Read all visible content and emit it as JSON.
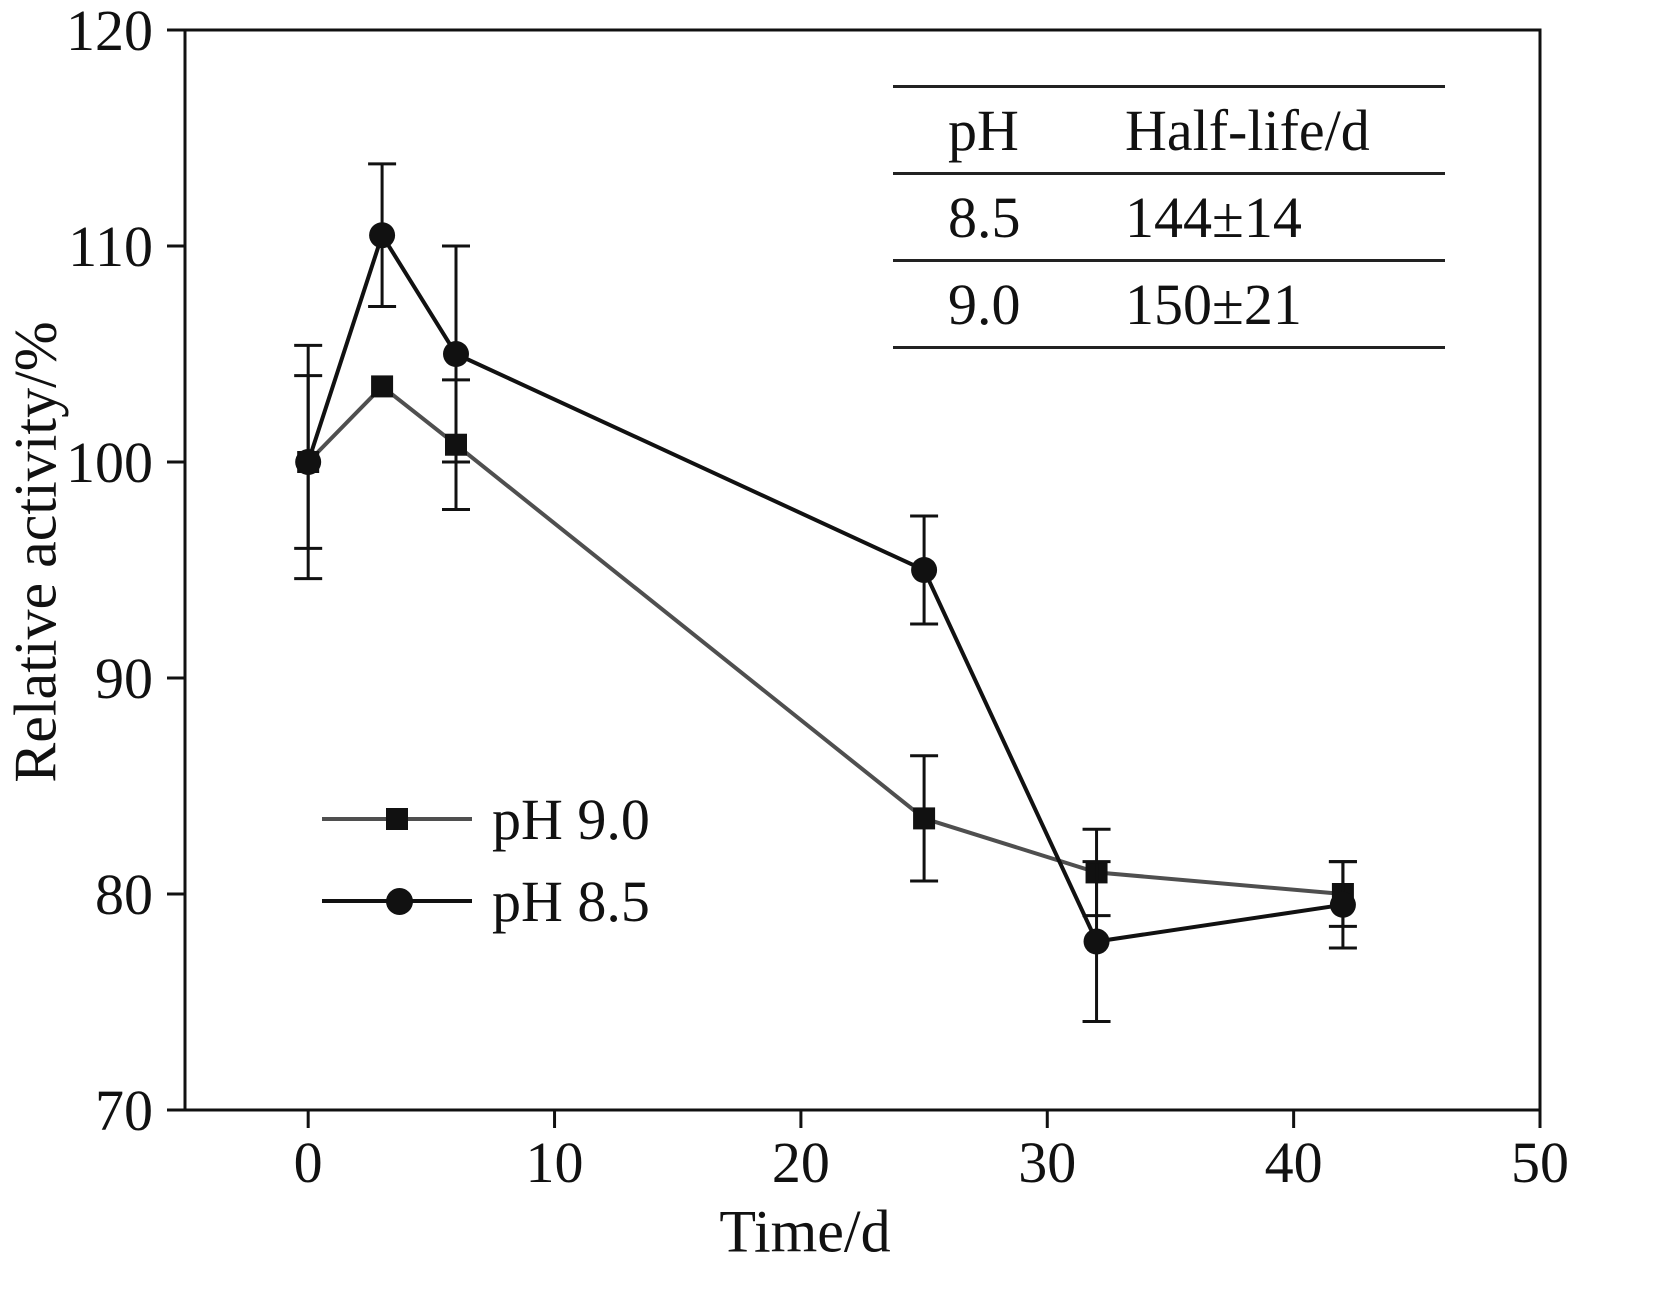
{
  "figure": {
    "xlabel": "Time/d",
    "ylabel": "Relative activity/%"
  },
  "legend": {
    "items": [
      {
        "label": "pH 9.0",
        "marker": "square"
      },
      {
        "label": "pH 8.5",
        "marker": "circle"
      }
    ]
  },
  "inset_table": {
    "headers": [
      "pH",
      "Half-life/d"
    ],
    "rows": [
      [
        "8.5",
        "144±14"
      ],
      [
        "9.0",
        "150±21"
      ]
    ]
  },
  "colors": {
    "axis": "#111111",
    "series_ph_9_0_line": "#4f4f4f",
    "series_ph_8_5_line": "#111111",
    "marker": "#111111"
  },
  "chart_data": {
    "type": "line",
    "x": [
      0,
      3,
      6,
      25,
      32,
      42
    ],
    "series": [
      {
        "name": "pH 9.0",
        "marker": "square",
        "color": "#4f4f4f",
        "marker_color": "#111111",
        "values": [
          100,
          103.5,
          100.8,
          83.5,
          81,
          80
        ],
        "errors": [
          4,
          0,
          3,
          2.9,
          2,
          1.5
        ]
      },
      {
        "name": "pH 8.5",
        "marker": "circle",
        "color": "#111111",
        "marker_color": "#111111",
        "values": [
          100,
          110.5,
          105,
          95,
          77.8,
          79.5
        ],
        "errors": [
          5.4,
          3.3,
          5,
          2.5,
          3.7,
          2
        ]
      }
    ],
    "title": "",
    "xlabel": "Time/d",
    "ylabel": "Relative activity/%",
    "xlim": [
      -5,
      50
    ],
    "ylim": [
      70,
      120
    ],
    "xticks": [
      0,
      10,
      20,
      30,
      40,
      50
    ],
    "yticks": [
      70,
      80,
      90,
      100,
      110,
      120
    ],
    "grid": false,
    "error_bars": true,
    "legend_position": "lower-left-inside"
  }
}
